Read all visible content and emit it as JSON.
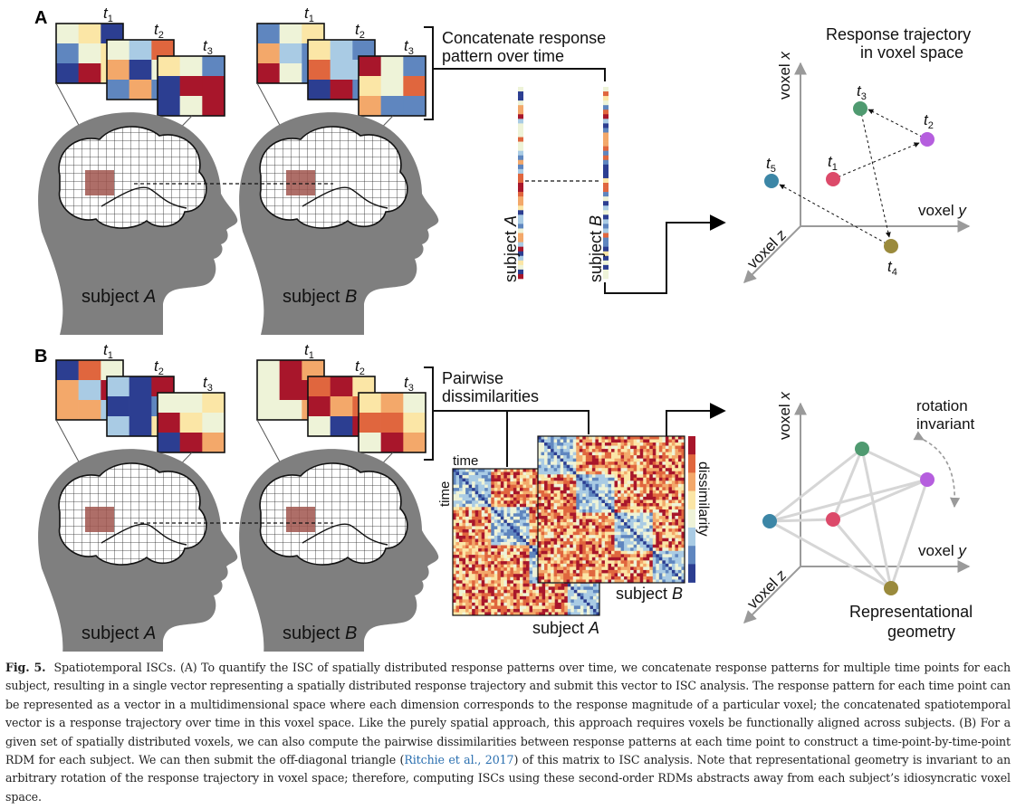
{
  "panelA": {
    "label": "A",
    "t1": "t",
    "t1_sub": "1",
    "t2": "t",
    "t2_sub": "2",
    "t3": "t",
    "t3_sub": "3",
    "subjectA_prefix": "subject ",
    "subjectA_var": "A",
    "subjectB_prefix": "subject ",
    "subjectB_var": "B",
    "concat_line1": "Concatenate response",
    "concat_line2": "pattern over time",
    "vecA_prefix": "subject ",
    "vecA_var": "A",
    "vecB_prefix": "subject ",
    "vecB_var": "B",
    "traj_title1": "Response trajectory",
    "traj_title2": "in voxel space",
    "axis_x_prefix": "voxel ",
    "axis_x_var": "x",
    "axis_y_prefix": "voxel ",
    "axis_y_var": "y",
    "axis_z_prefix": "voxel ",
    "axis_z_var": "z",
    "points": [
      {
        "t": "t",
        "sub": "1",
        "color": "#dc4a6a"
      },
      {
        "t": "t",
        "sub": "2",
        "color": "#b55ede"
      },
      {
        "t": "t",
        "sub": "3",
        "color": "#4f9a70"
      },
      {
        "t": "t",
        "sub": "4",
        "color": "#9a8a3c"
      },
      {
        "t": "t",
        "sub": "5",
        "color": "#3c86a6"
      }
    ]
  },
  "panelB": {
    "label": "B",
    "t1": "t",
    "t1_sub": "1",
    "t2": "t",
    "t2_sub": "2",
    "t3": "t",
    "t3_sub": "3",
    "subjectA_prefix": "subject ",
    "subjectA_var": "A",
    "subjectB_prefix": "subject ",
    "subjectB_var": "B",
    "pairwise_line1": "Pairwise",
    "pairwise_line2": "dissimilarities",
    "rdm_time_top": "time",
    "rdm_time_left": "time",
    "rdm_subjA_prefix": "subject ",
    "rdm_subjA_var": "A",
    "rdm_subjB_prefix": "subject ",
    "rdm_subjB_var": "B",
    "colorbar_label": "dissimilarity",
    "rotation_line1": "rotation",
    "rotation_line2": "invariant",
    "geom_line1": "Representational",
    "geom_line2": "geometry",
    "axis_x_prefix": "voxel ",
    "axis_x_var": "x",
    "axis_y_prefix": "voxel ",
    "axis_y_var": "y",
    "axis_z_prefix": "voxel ",
    "axis_z_var": "z"
  },
  "caption": {
    "label": "Fig. 5.",
    "part1": "Spatiotemporal ISCs. (A) To quantify the ISC of spatially distributed response patterns over time, we concatenate response patterns for multiple time points for each subject, resulting in a single vector representing a spatially distributed response trajectory and submit this vector to ISC analysis. The response pattern for each time point can be represented as a vector in a multidimensional space where each dimension corresponds to the response magnitude of a particular voxel; the concatenated spatiotemporal vector is a response trajectory over time in this voxel space. Like the purely spatial approach, this approach requires voxels be functionally aligned across subjects. (B) For a given set of spatially distributed voxels, we can also compute the pairwise dissimilarities between response patterns at each time point to construct a time-point-by-time-point RDM for each subject. We can then submit the off-diagonal triangle (",
    "citation": "Ritchie et al., 2017",
    "part2": ") of this matrix to ISC analysis. Note that representational geometry is invariant to an arbitrary rotation of the response trajectory in voxel space; therefore, computing ISCs using these second-order RDMs abstracts away from each subject’s idiosyncratic voxel space."
  },
  "colors": {
    "head": "#7f7f7f",
    "roi": "#a0554e",
    "palette": [
      "#2c3e91",
      "#5f86bf",
      "#a9cbe4",
      "#eef3d8",
      "#fbe6a6",
      "#f3a86a",
      "#e0663e",
      "#a8162b"
    ]
  }
}
